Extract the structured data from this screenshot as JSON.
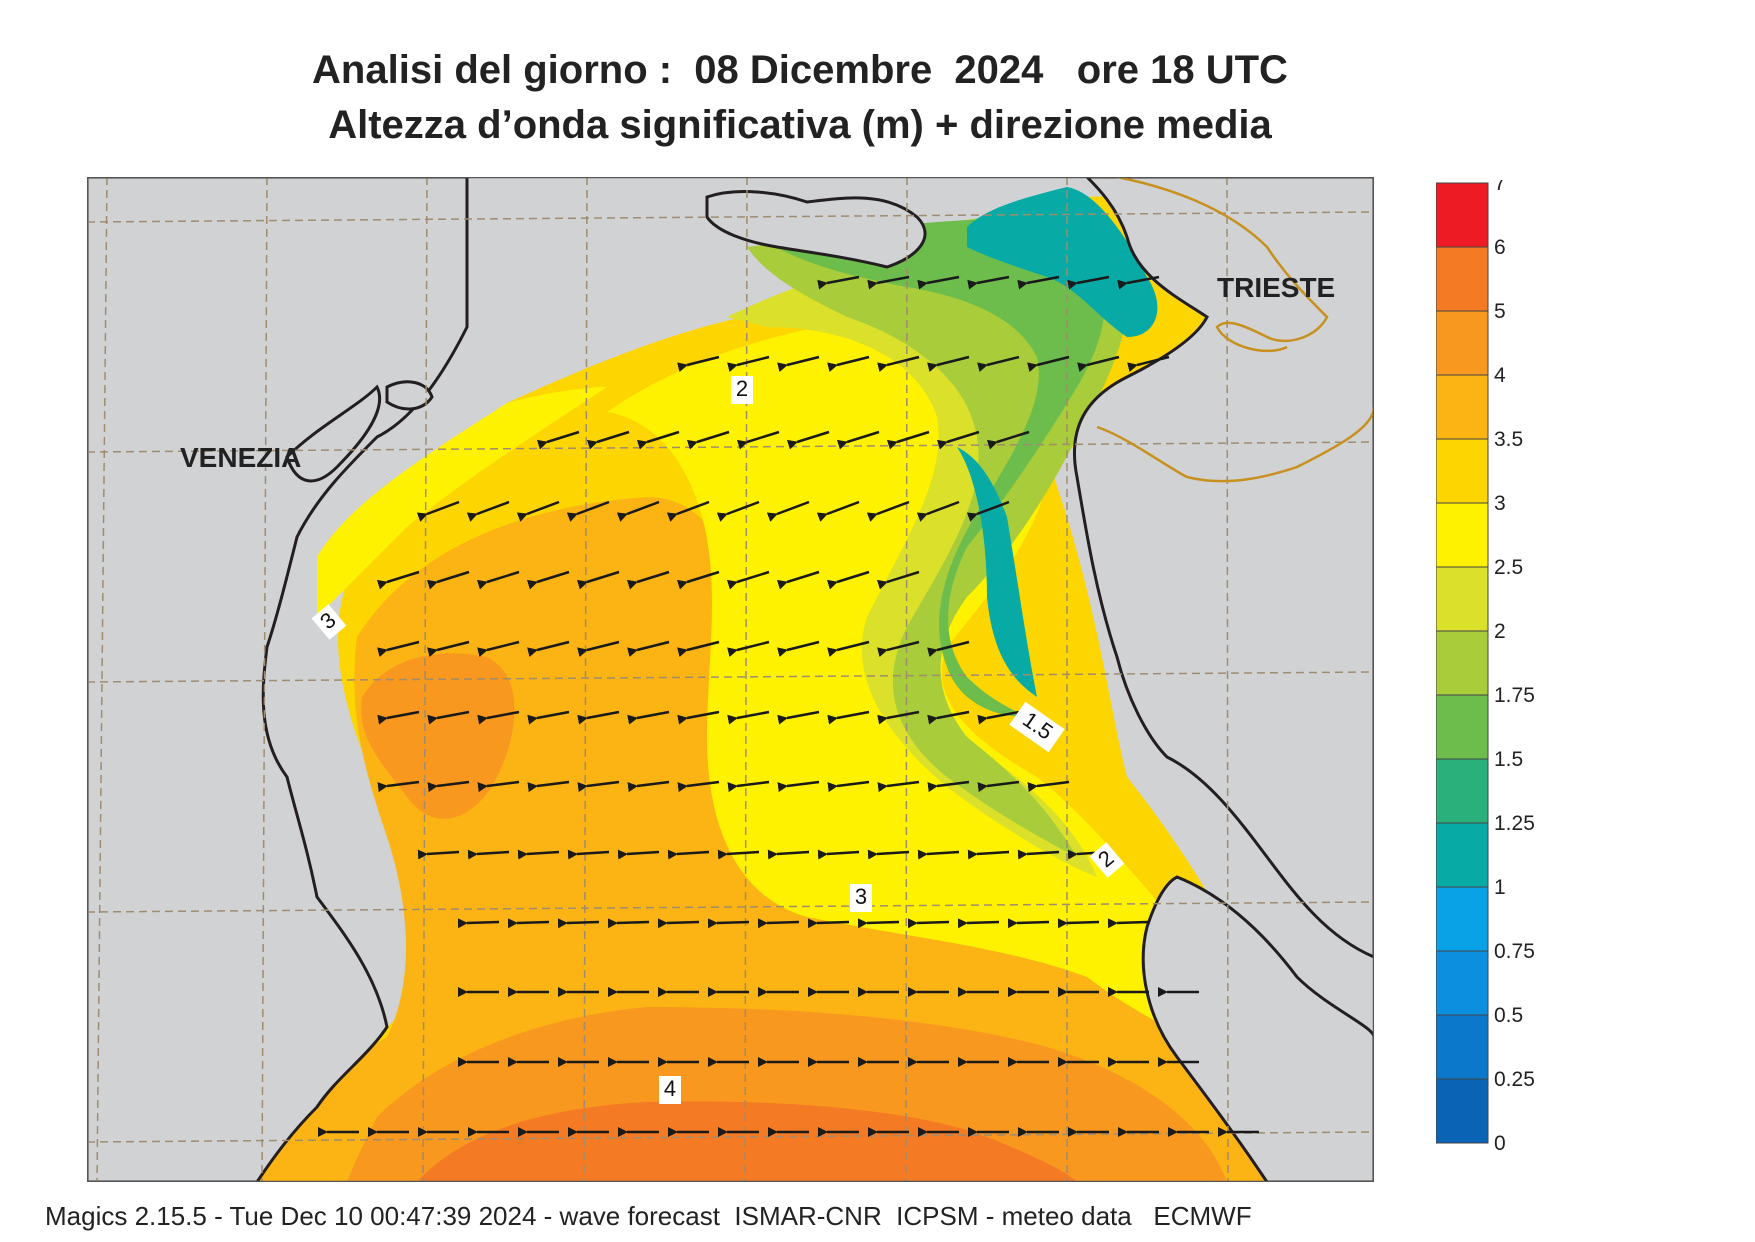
{
  "title": "Analisi del giorno :  08 Dicembre  2024   ore 18 UTC",
  "subtitle": "Altezza d’onda significativa (m) + direzione media",
  "footer": "Magics 2.15.5 - Tue Dec 10 00:47:39 2024 - wave forecast  ISMAR-CNR  ICPSM - meteo data   ECMWF",
  "places": [
    {
      "name": "VENEZIA"
    },
    {
      "name": "TRIESTE"
    }
  ],
  "contour_labels": [
    "2",
    "3",
    "1.5",
    "2",
    "3",
    "4"
  ],
  "legend": {
    "levels": [
      "0",
      "0.25",
      "0.5",
      "0.75",
      "1",
      "1.25",
      "1.5",
      "1.75",
      "2",
      "2.5",
      "3",
      "3.5",
      "4",
      "5",
      "6",
      "7"
    ],
    "colors": [
      "#0a63b4",
      "#0b78cc",
      "#0c8fdf",
      "#0aa2e6",
      "#08aaa6",
      "#2ab07a",
      "#6cbd4c",
      "#a8cc3a",
      "#dbe02a",
      "#fff200",
      "#fdd500",
      "#fbb414",
      "#f8981e",
      "#f47a24",
      "#ed1c24",
      "#ec0f6c"
    ]
  },
  "colors": {
    "land": "#d1d2d4",
    "coast": "#231f20",
    "border": "#c8901e",
    "grid": "#a08c6e",
    "arrow": "#1a1a1a"
  }
}
